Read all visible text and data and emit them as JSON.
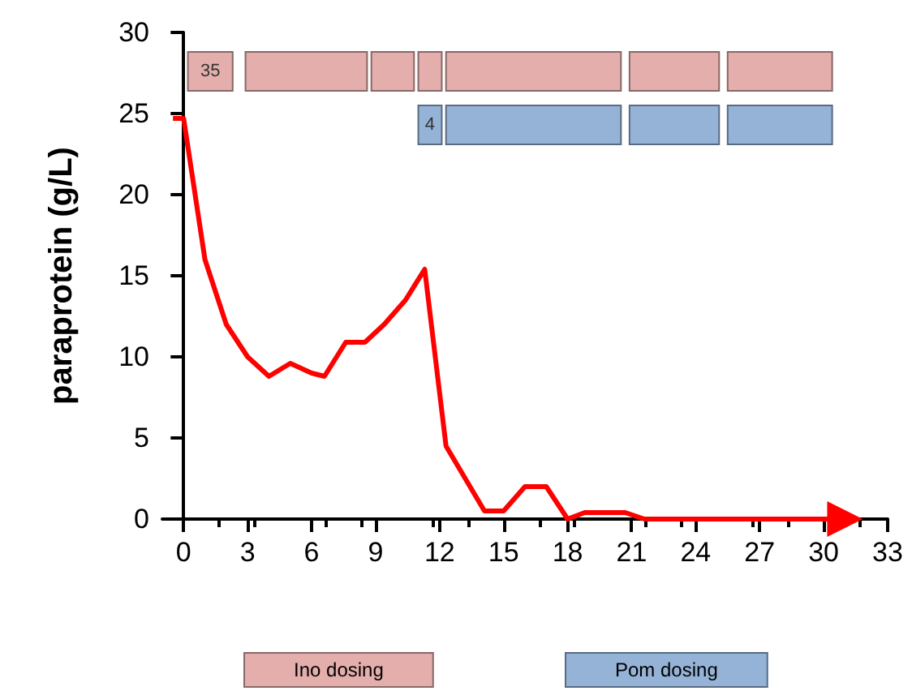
{
  "chart_data": {
    "type": "line",
    "ylabel": "paraprotein (g/L)",
    "xlim": [
      -1,
      33
    ],
    "xticks": [
      0,
      3,
      6,
      9,
      12,
      15,
      18,
      21,
      24,
      27,
      30,
      33
    ],
    "ylim": [
      0,
      30
    ],
    "yticks": [
      0,
      5,
      10,
      15,
      20,
      25,
      30
    ],
    "grid": false,
    "marker": "none",
    "line_style": "solid",
    "annotations": [
      "Ino dosing",
      "Pom dosing"
    ],
    "series": [
      {
        "color": "#ff0000",
        "x": [
          -0.5,
          0,
          1,
          2,
          3,
          4,
          5,
          6,
          6.6,
          7.6,
          8.5,
          9.4,
          10.4,
          11.3,
          12.3,
          14.1,
          15,
          16,
          17,
          18,
          18.8,
          20.7,
          21.6,
          31
        ],
        "values": [
          24.7,
          24.7,
          16,
          12,
          10,
          8.8,
          9.6,
          9,
          8.8,
          10.9,
          10.9,
          12,
          13.5,
          15.4,
          4.5,
          0.5,
          0.5,
          2,
          2,
          0,
          0.4,
          0.4,
          0,
          0
        ]
      }
    ],
    "bands": [
      {
        "axis": "x",
        "from": 0.2,
        "to": 2.3,
        "label": "35",
        "color": "#e3aeac"
      },
      {
        "axis": "x",
        "from": 2.9,
        "to": 8.6,
        "color": "#e3aeac"
      },
      {
        "axis": "x",
        "from": 8.8,
        "to": 10.8,
        "color": "#e3aeac"
      },
      {
        "axis": "x",
        "from": 11,
        "to": 12.1,
        "color": "#e3aeac"
      },
      {
        "axis": "x",
        "from": 12.3,
        "to": 20.5,
        "color": "#e3aeac"
      },
      {
        "axis": "x",
        "from": 20.9,
        "to": 25.1,
        "color": "#e3aeac"
      },
      {
        "axis": "x",
        "from": 25.5,
        "to": 30.4,
        "color": "#e3aeac"
      },
      {
        "axis": "x",
        "from": 11,
        "to": 12.1,
        "label": "4",
        "color": "#95b3d7"
      },
      {
        "axis": "x",
        "from": 12.3,
        "to": 20.5,
        "color": "#95b3d7"
      },
      {
        "axis": "x",
        "from": 20.9,
        "to": 25.1,
        "color": "#95b3d7"
      },
      {
        "axis": "x",
        "from": 25.5,
        "to": 30.4,
        "color": "#95b3d7"
      }
    ]
  }
}
